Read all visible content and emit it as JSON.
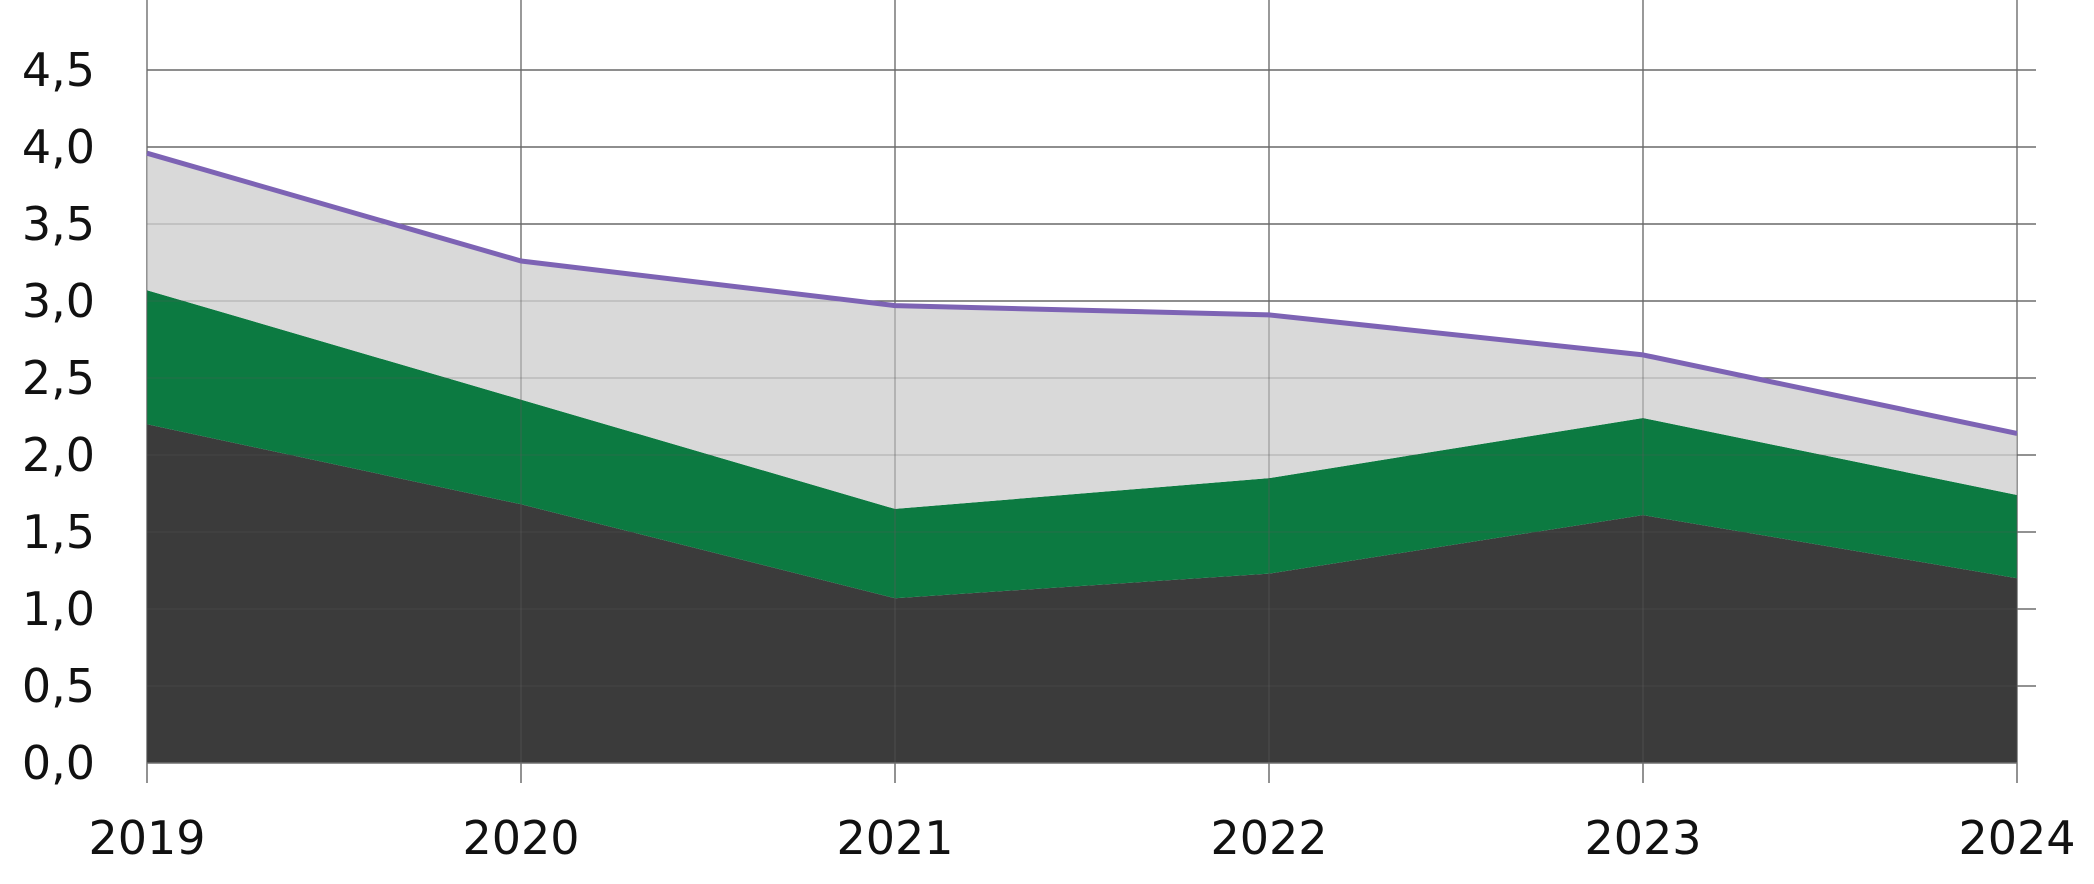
{
  "chart_data": {
    "type": "area",
    "x": [
      "2019",
      "2020",
      "2021",
      "2022",
      "2023",
      "2024"
    ],
    "series": [
      {
        "values": [
          2.2,
          1.68,
          1.07,
          1.23,
          1.61,
          1.2
        ],
        "color": "#3b3b3b"
      },
      {
        "values": [
          0.87,
          0.68,
          0.58,
          0.62,
          0.63,
          0.54
        ],
        "color": "#0c7a41"
      },
      {
        "values": [
          0.89,
          0.9,
          1.32,
          1.06,
          0.41,
          0.4
        ],
        "color": "#d9d9d9"
      }
    ],
    "total_line": {
      "values": [
        3.96,
        3.26,
        2.97,
        2.91,
        2.65,
        2.14
      ],
      "color": "#7d63b4"
    },
    "ylim": [
      0,
      4.5
    ],
    "y_ticks": [
      "0,0",
      "0,5",
      "1,0",
      "1,5",
      "2,0",
      "2,5",
      "3,0",
      "3,5",
      "4,0",
      "4,5"
    ],
    "grid": true,
    "stacked": true
  }
}
